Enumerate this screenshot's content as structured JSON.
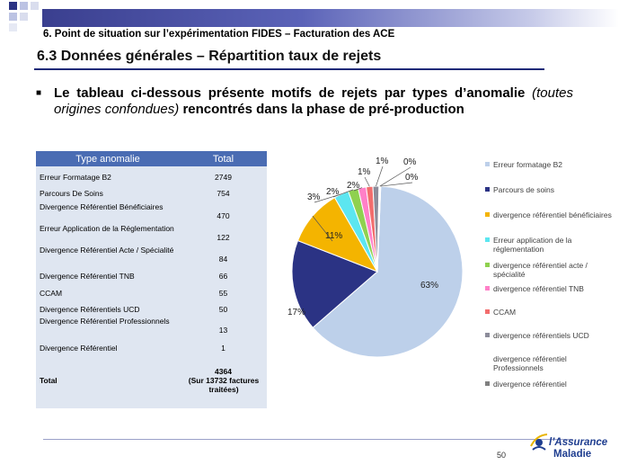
{
  "header": {
    "section": "6. Point de situation sur l’expérimentation FIDES – Facturation des ACE",
    "subtitle": "6.3 Données générales – Répartition taux de rejets"
  },
  "intro": {
    "bullet": "■",
    "part1": "Le tableau ci-dessous présente motifs de rejets par types d’anomalie",
    "part2_italic": "(toutes origines confondues)",
    "part3": "rencontrés dans la phase de pré-production"
  },
  "table": {
    "headers": [
      "Type anomalie",
      "Total"
    ],
    "rows": [
      {
        "label": "Erreur Formatage B2",
        "value": "2749"
      },
      {
        "label": "Parcours De Soins",
        "value": "754"
      },
      {
        "label": "Divergence Référentiel Bénéficiaires",
        "value": "470"
      },
      {
        "label": "Erreur Application de la Réglementation",
        "value": "122"
      },
      {
        "label": "Divergence Référentiel Acte / Spécialité",
        "value": "84"
      },
      {
        "label": "Divergence Référentiel TNB",
        "value": "66"
      },
      {
        "label": "CCAM",
        "value": "55"
      },
      {
        "label": "Divergence Référentiels UCD",
        "value": "50"
      },
      {
        "label": "Divergence Référentiel Professionnels",
        "value": "13"
      },
      {
        "label": "Divergence Référentiel",
        "value": "1"
      }
    ],
    "total": {
      "label": "Total",
      "value": "4364",
      "note": "(Sur 13732 factures traitées)"
    }
  },
  "chart_data": {
    "type": "pie",
    "title": "",
    "slices": [
      {
        "name": "Erreur formatage B2",
        "value": 2749,
        "label": "63%",
        "color": "#bdd0ea"
      },
      {
        "name": "Parcours de soins",
        "value": 754,
        "label": "17%",
        "color": "#2b3384"
      },
      {
        "name": "divergence référentiel bénéficiaires",
        "value": 470,
        "label": "11%",
        "color": "#f4b400"
      },
      {
        "name": "Erreur application de la réglementation",
        "value": 122,
        "label": "3%",
        "color": "#5ce6f0"
      },
      {
        "name": "divergence référentiel acte / spécialité",
        "value": 84,
        "label": "2%",
        "color": "#8fd14f"
      },
      {
        "name": "divergence référentiel TNB",
        "value": 66,
        "label": "2%",
        "color": "#ff80c8"
      },
      {
        "name": "CCAM",
        "value": 55,
        "label": "1%",
        "color": "#f26d6d"
      },
      {
        "name": "divergence référentiels UCD",
        "value": 50,
        "label": "1%",
        "color": "#8c8c9a"
      },
      {
        "name": "divergence référentiel Professionnels",
        "value": 13,
        "label": "0%",
        "color": "#ffffff"
      },
      {
        "name": "divergence référentiel",
        "value": 1,
        "label": "0%",
        "color": "#7f7f7f"
      }
    ],
    "legend_position": "right"
  },
  "footer": {
    "page_number": "50",
    "logo_line1": "l’Assurance",
    "logo_line2": "Maladie",
    "logo_colors": {
      "primary": "#1e3d8f",
      "accent": "#e8b400"
    }
  }
}
